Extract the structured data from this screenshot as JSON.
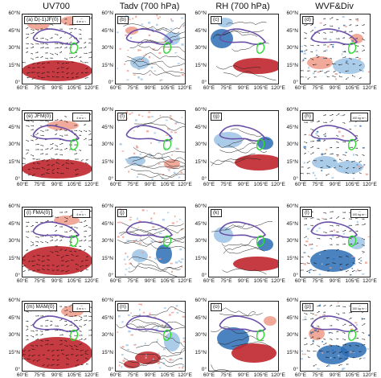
{
  "columns": [
    {
      "title": "UV700",
      "panels": [
        {
          "label": "(a) D(-1)JF(0)",
          "ref": "4 m s⁻¹"
        },
        {
          "label": "(e) JFM(0)",
          "ref": "4 m s⁻¹"
        },
        {
          "label": "(i) FMA(0)",
          "ref": "4 m s⁻¹"
        },
        {
          "label": "(m) MAM(0)",
          "ref": "4 m s⁻¹"
        }
      ]
    },
    {
      "title": "Tadv (700 hPa)",
      "panels": [
        {
          "label": "(b)"
        },
        {
          "label": "(f)"
        },
        {
          "label": "(j)"
        },
        {
          "label": "(n)"
        }
      ]
    },
    {
      "title": "RH (700 hPa)",
      "panels": [
        {
          "label": "(c)"
        },
        {
          "label": "(g)"
        },
        {
          "label": "(k)"
        },
        {
          "label": "(o)"
        }
      ]
    },
    {
      "title": "WVF&Div",
      "panels": [
        {
          "label": "(d)"
        },
        {
          "label": "(h)",
          "ref": "100 kg m⁻¹ s⁻¹"
        },
        {
          "label": "(l)",
          "ref": "100 kg m⁻¹ s⁻¹"
        },
        {
          "label": "(p)",
          "ref": "100 kg m⁻¹ s⁻¹"
        }
      ]
    }
  ],
  "y_ticks": [
    "60°N",
    "45°N",
    "30°N",
    "15°N",
    "0°"
  ],
  "x_ticks": [
    "60°E",
    "75°E",
    "90°E",
    "105°E",
    "120°E"
  ],
  "colors": {
    "red": "#c0262c",
    "lightred": "#ef9a88",
    "blue": "#2c6db5",
    "lightblue": "#9cc3e4",
    "plateau": "#6a4fa8",
    "region": "#2fdc2f"
  }
}
